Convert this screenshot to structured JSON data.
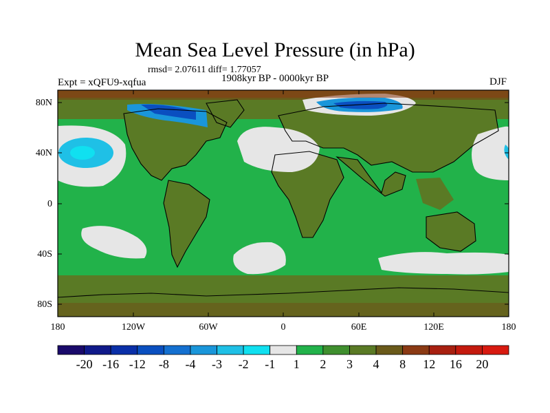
{
  "title": "Mean Sea Level Pressure (in hPa)",
  "stats": "rmsd= 2.07611 diff= 1.77057",
  "period": "1908kyr BP - 0000kyr BP",
  "experiment": "Expt = xQFU9-xqfua",
  "season": "DJF",
  "lat_labels": [
    "80N",
    "40N",
    "0",
    "40S",
    "80S"
  ],
  "lon_labels": [
    "180",
    "120W",
    "60W",
    "0",
    "60E",
    "120E",
    "180"
  ],
  "colorbar": {
    "labels": [
      "-20",
      "-16",
      "-12",
      "-8",
      "-4",
      "-3",
      "-2",
      "-1",
      "1",
      "2",
      "3",
      "4",
      "8",
      "12",
      "16",
      "20"
    ],
    "colors": [
      "#1a0a6b",
      "#101a8a",
      "#0a2fa8",
      "#0a4fc0",
      "#1470d0",
      "#1a96da",
      "#1fc0e6",
      "#10e0f0",
      "#e6e6e6",
      "#22b24a",
      "#3f8f2e",
      "#5a7a25",
      "#6a5a1a",
      "#8b3a14",
      "#a82010",
      "#c41a0e",
      "#d81a10"
    ]
  },
  "colors": {
    "land": "#5a7a25",
    "ocean": "#22b24a",
    "coastline": "#000000"
  }
}
